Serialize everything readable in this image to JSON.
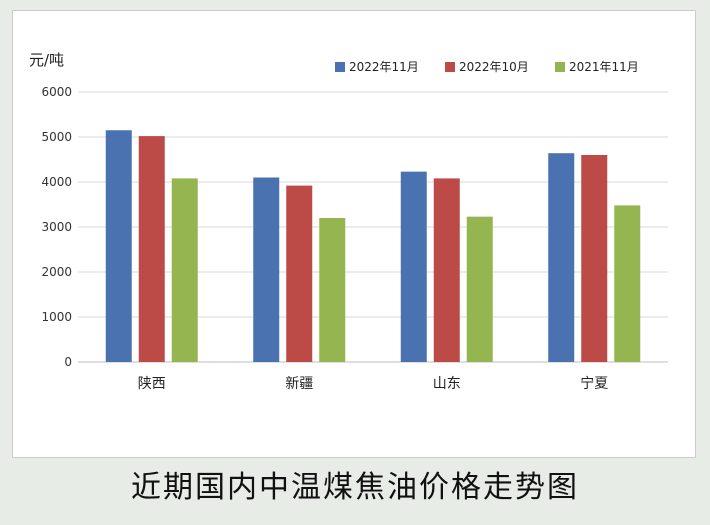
{
  "caption": "近期国内中温煤焦油价格走势图",
  "chart_data": {
    "type": "bar",
    "title": "",
    "ylabel": "元/吨",
    "xlabel": "",
    "categories": [
      "陕西",
      "新疆",
      "山东",
      "宁夏"
    ],
    "series": [
      {
        "name": "2022年11月",
        "color": "#4a72b0",
        "values": [
          5150,
          4100,
          4230,
          4640
        ]
      },
      {
        "name": "2022年10月",
        "color": "#bc4a47",
        "values": [
          5020,
          3920,
          4080,
          4600
        ]
      },
      {
        "name": "2021年11月",
        "color": "#95b550",
        "values": [
          4080,
          3200,
          3230,
          3480
        ]
      }
    ],
    "ylim": [
      0,
      6000
    ],
    "yticks": [
      0,
      1000,
      2000,
      3000,
      4000,
      5000,
      6000
    ],
    "grid": true,
    "legend_position": "top-right"
  }
}
